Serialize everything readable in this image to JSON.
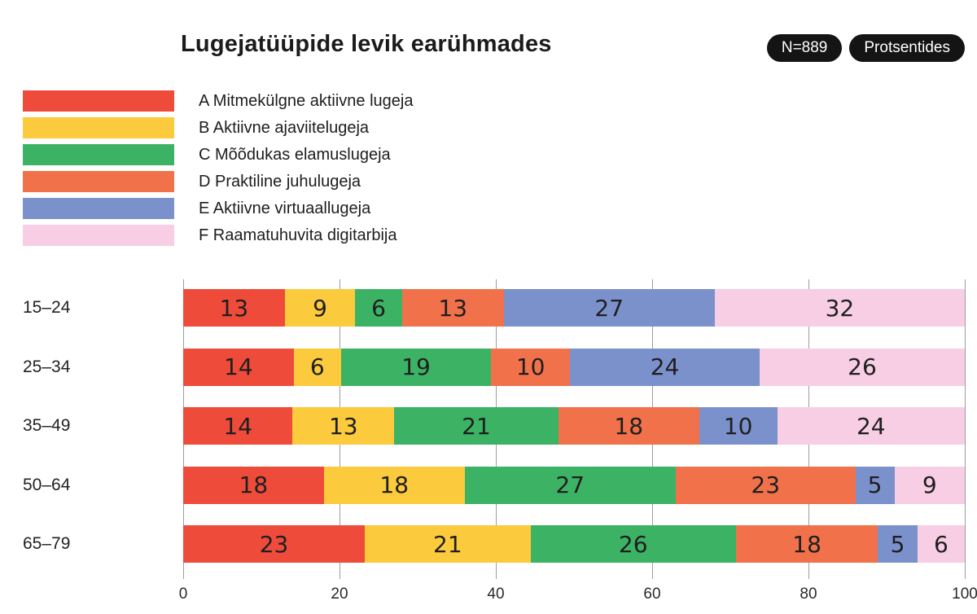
{
  "title": "Lugejatüüpide levik earühmades",
  "badges": [
    {
      "label": "N=889"
    },
    {
      "label": "Protsentides"
    }
  ],
  "legend": [
    {
      "key": "A",
      "label": "A Mitmekülgne aktiivne lugeja",
      "color": "#ef4b3b"
    },
    {
      "key": "B",
      "label": "B Aktiivne ajaviitelugeja",
      "color": "#fcca3d"
    },
    {
      "key": "C",
      "label": "C Mõõdukas elamuslugeja",
      "color": "#3cb364"
    },
    {
      "key": "D",
      "label": "D Praktiline juhulugeja",
      "color": "#f1714b"
    },
    {
      "key": "E",
      "label": "E Aktiivne virtuaallugeja",
      "color": "#7b91cb"
    },
    {
      "key": "F",
      "label": "F Raamatuhuvita digitarbija",
      "color": "#f7cee3"
    }
  ],
  "chart_data": {
    "type": "bar",
    "stacked": true,
    "orientation": "horizontal",
    "title": "Lugejatüüpide levik earühmades",
    "xlabel": "",
    "ylabel": "",
    "categories": [
      "15–24",
      "25–34",
      "35–49",
      "50–64",
      "65–79"
    ],
    "series": [
      {
        "name": "A Mitmekülgne aktiivne lugeja",
        "color": "#ef4b3b",
        "values": [
          13,
          14,
          14,
          18,
          23
        ]
      },
      {
        "name": "B Aktiivne ajaviitelugeja",
        "color": "#fcca3d",
        "values": [
          9,
          6,
          13,
          18,
          21
        ]
      },
      {
        "name": "C Mõõdukas elamuslugeja",
        "color": "#3cb364",
        "values": [
          6,
          19,
          21,
          27,
          26
        ]
      },
      {
        "name": "D Praktiline juhulugeja",
        "color": "#f1714b",
        "values": [
          13,
          10,
          18,
          23,
          18
        ]
      },
      {
        "name": "E Aktiivne virtuaallugeja",
        "color": "#7b91cb",
        "values": [
          27,
          24,
          10,
          5,
          5
        ]
      },
      {
        "name": "F Raamatuhuvita digitarbija",
        "color": "#f7cee3",
        "values": [
          32,
          26,
          24,
          9,
          6
        ]
      }
    ],
    "x_ticks": [
      0,
      20,
      40,
      60,
      80,
      100
    ],
    "xlim": [
      0,
      100
    ],
    "grid": true,
    "gridline_color": "#9e9e9e",
    "legend_position": "top-left",
    "value_labels": "inside-center"
  }
}
